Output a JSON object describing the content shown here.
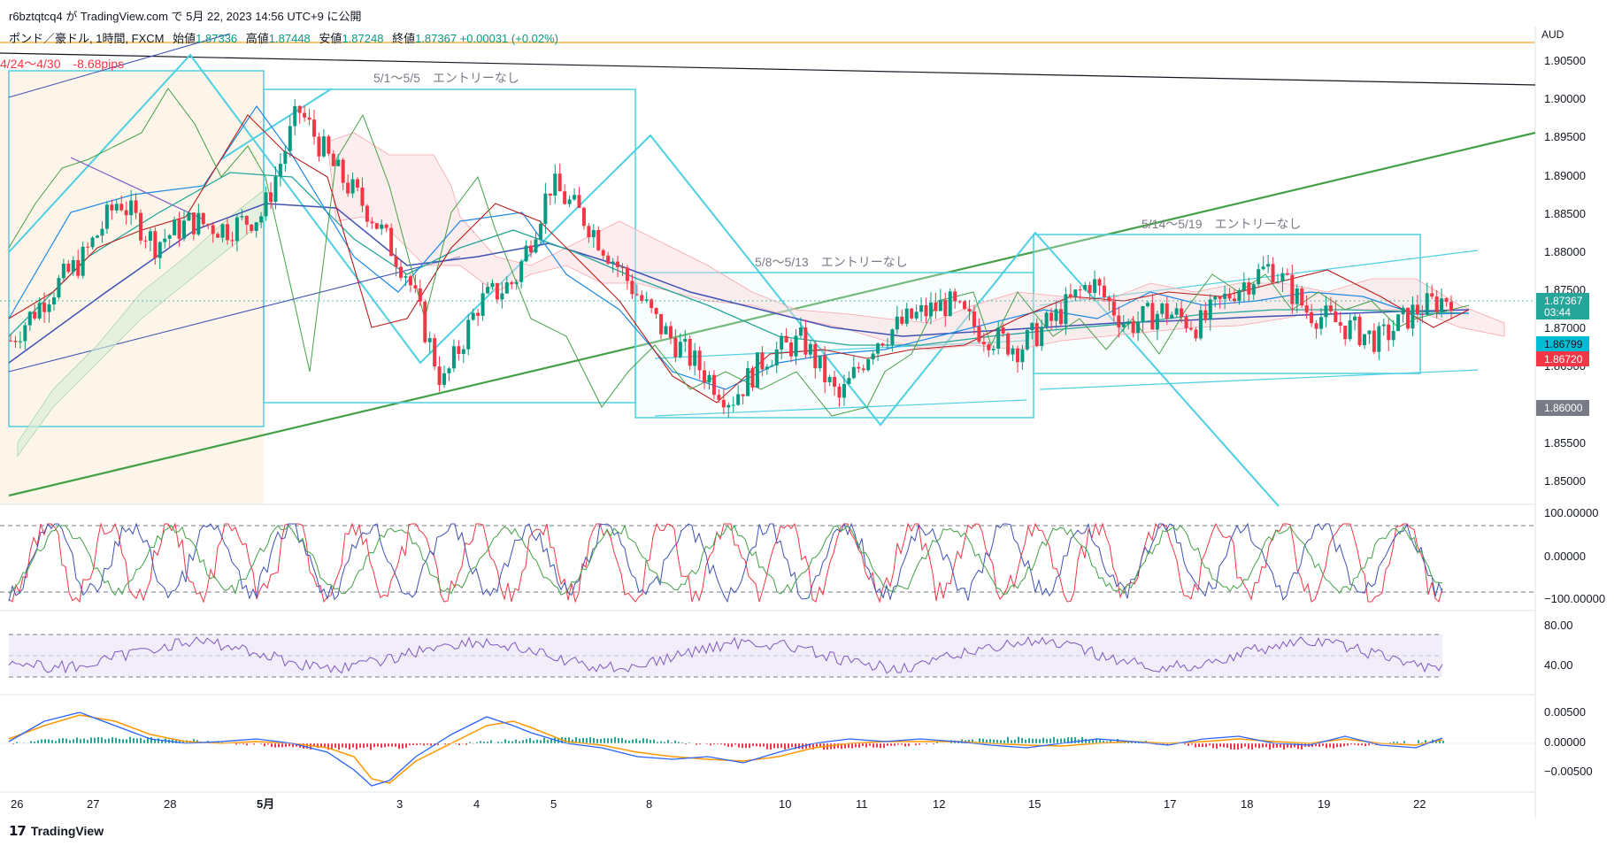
{
  "header": {
    "published": "r6bztqtcq4 が TradingView.com で 5月 22, 2023 14:56 UTC+9 に公開"
  },
  "legend": {
    "symbol": "ポンド／豪ドル, 1時間, FXCM",
    "open_label": "始値",
    "open": "1.87336",
    "high_label": "高値",
    "high": "1.87448",
    "low_label": "安値",
    "low": "1.87248",
    "close_label": "終値",
    "close": "1.87367",
    "change": "+0.00031 (+0.02%)"
  },
  "annotations": {
    "week_prev": "4/24〜4/30",
    "week_prev_pips": "-8.68pips",
    "week1": "5/1〜5/5　エントリーなし",
    "week2": "5/8〜5/13　エントリーなし",
    "week3": "5/14〜5/19　エントリーなし"
  },
  "price_axis": {
    "currency": "AUD",
    "ticks": [
      "1.90500",
      "1.90000",
      "1.89500",
      "1.89000",
      "1.88500",
      "1.88000",
      "1.87500",
      "1.87000",
      "1.86500",
      "1.86000",
      "1.85500",
      "1.85000"
    ],
    "current_price": "1.87367",
    "countdown": "03:44",
    "tag_teal": "1.86799",
    "tag_red": "1.86720",
    "tag_grey": "1.86000"
  },
  "stoch_axis": {
    "ticks": [
      "100.00000",
      "0.00000",
      "−100.00000"
    ]
  },
  "rsi_axis": {
    "ticks": [
      "80.00",
      "40.00"
    ]
  },
  "macd_axis": {
    "ticks": [
      "0.00500",
      "0.00000",
      "−0.00500"
    ]
  },
  "time_axis": {
    "labels": [
      "26",
      "27",
      "28",
      "5月",
      "3",
      "4",
      "5",
      "8",
      "10",
      "11",
      "12",
      "15",
      "17",
      "18",
      "19",
      "22"
    ]
  },
  "footer": {
    "brand": "TradingView"
  },
  "colors": {
    "up": "#089981",
    "down": "#f23645",
    "teal_lines": "#4dd0e1",
    "green_trend": "#43a047",
    "navy_ma": "#3f51b5",
    "rsi": "#7e57c2"
  },
  "chart_data": {
    "type": "candlestick",
    "symbol": "ポンド／豪ドル",
    "timeframe": "1時間",
    "ylim": [
      1.846,
      1.908
    ],
    "x": [
      "26",
      "27",
      "28",
      "5月",
      "3",
      "4",
      "5",
      "8",
      "10",
      "11",
      "12",
      "15",
      "17",
      "18",
      "19",
      "22"
    ],
    "close_path": [
      1.868,
      1.874,
      1.879,
      1.887,
      1.881,
      1.884,
      1.883,
      1.885,
      1.899,
      1.891,
      1.885,
      1.877,
      1.862,
      1.873,
      1.876,
      1.889,
      1.884,
      1.877,
      1.87,
      1.865,
      1.86,
      1.866,
      1.868,
      1.86,
      1.868,
      1.871,
      1.873,
      1.869,
      1.867,
      1.871,
      1.876,
      1.87,
      1.872,
      1.87,
      1.875,
      1.878,
      1.872,
      1.87,
      1.868,
      1.872,
      1.874
    ]
  }
}
